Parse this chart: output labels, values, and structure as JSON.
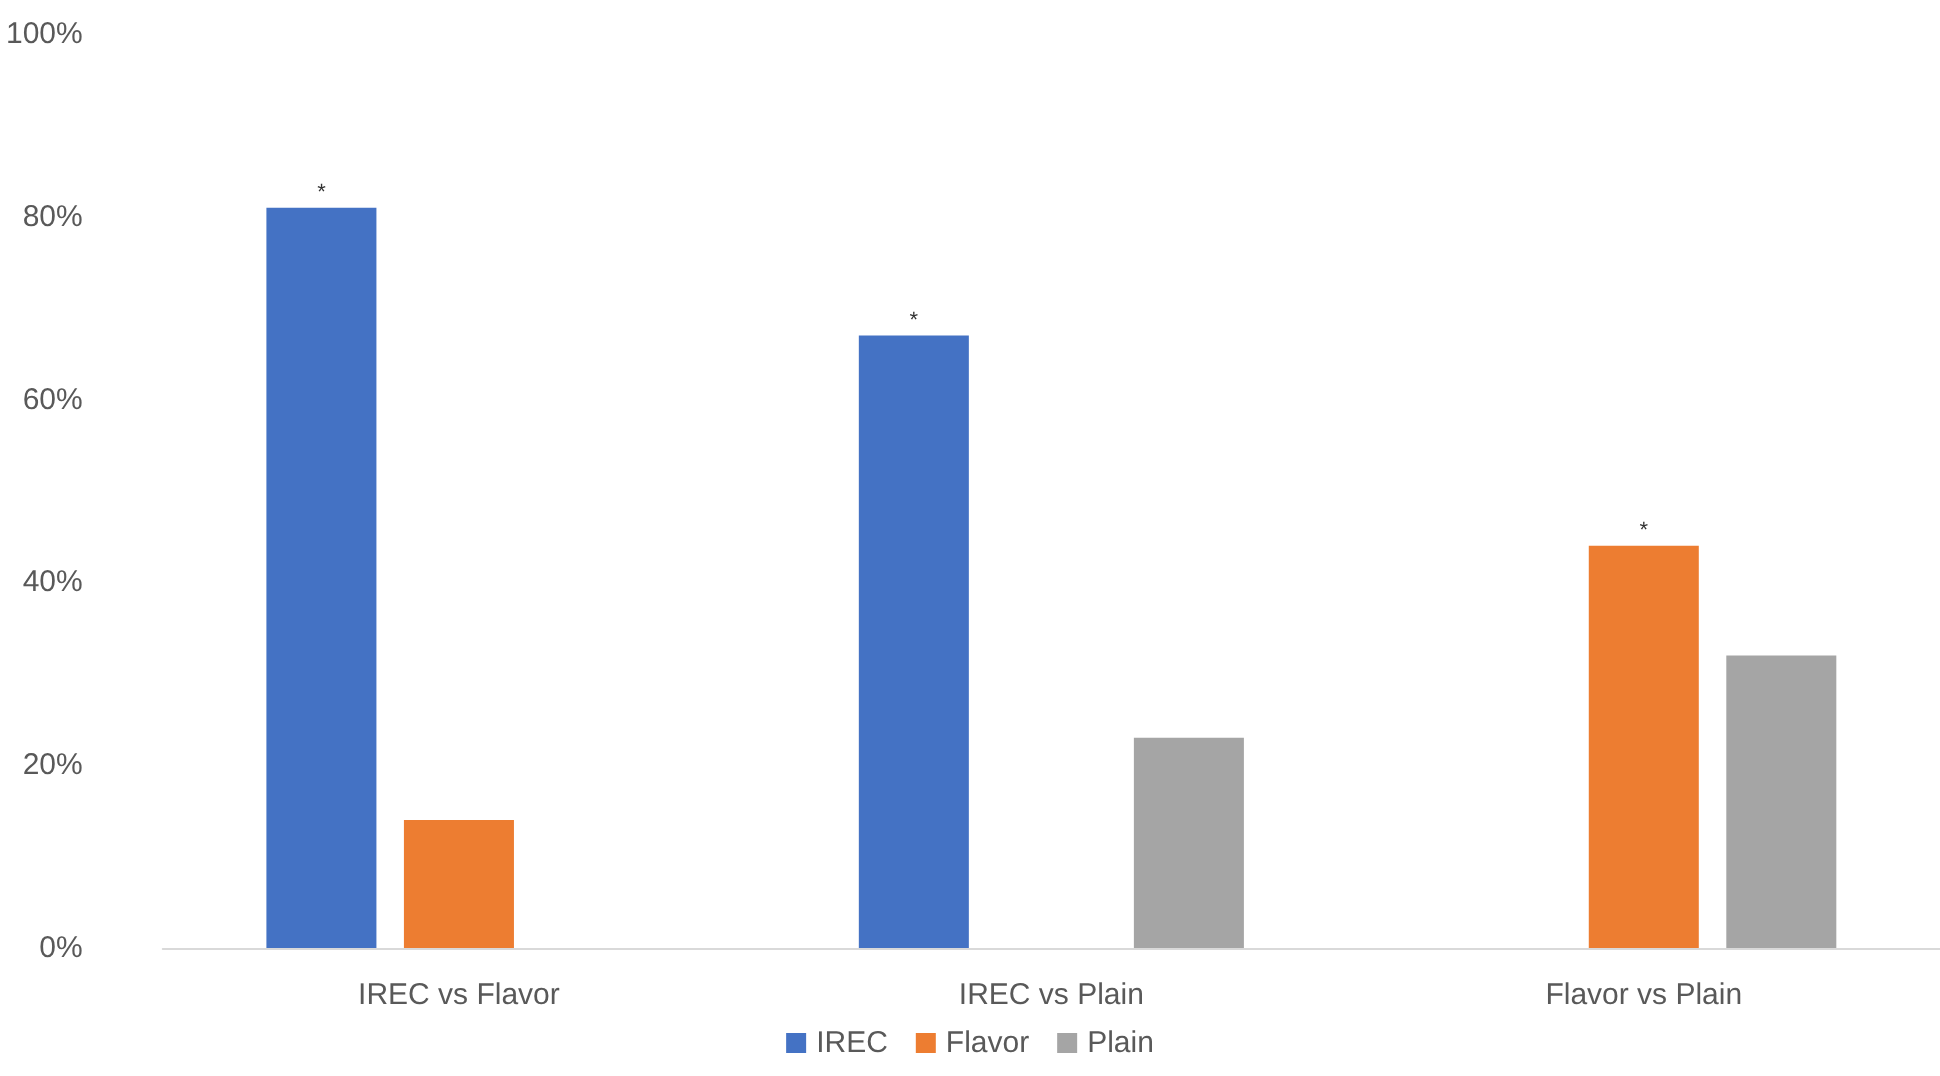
{
  "chart_data": {
    "type": "bar",
    "categories": [
      "IREC vs Flavor",
      "IREC vs Plain",
      "Flavor vs Plain"
    ],
    "series": [
      {
        "name": "IREC",
        "color": "#4472c4",
        "values": [
          81,
          67,
          null
        ]
      },
      {
        "name": "Flavor",
        "color": "#ed7d31",
        "values": [
          14,
          null,
          44
        ]
      },
      {
        "name": "Plain",
        "color": "#a5a5a5",
        "values": [
          null,
          23,
          32
        ]
      }
    ],
    "ylim": [
      0,
      100
    ],
    "yticks": [
      {
        "value": 0,
        "label": "0%"
      },
      {
        "value": 20,
        "label": "20%"
      },
      {
        "value": 40,
        "label": "40%"
      },
      {
        "value": 60,
        "label": "60%"
      },
      {
        "value": 80,
        "label": "80%"
      },
      {
        "value": 100,
        "label": "100%"
      }
    ],
    "annotations": [
      "*",
      "*",
      "*"
    ],
    "grid": false,
    "legend": "bottom"
  }
}
